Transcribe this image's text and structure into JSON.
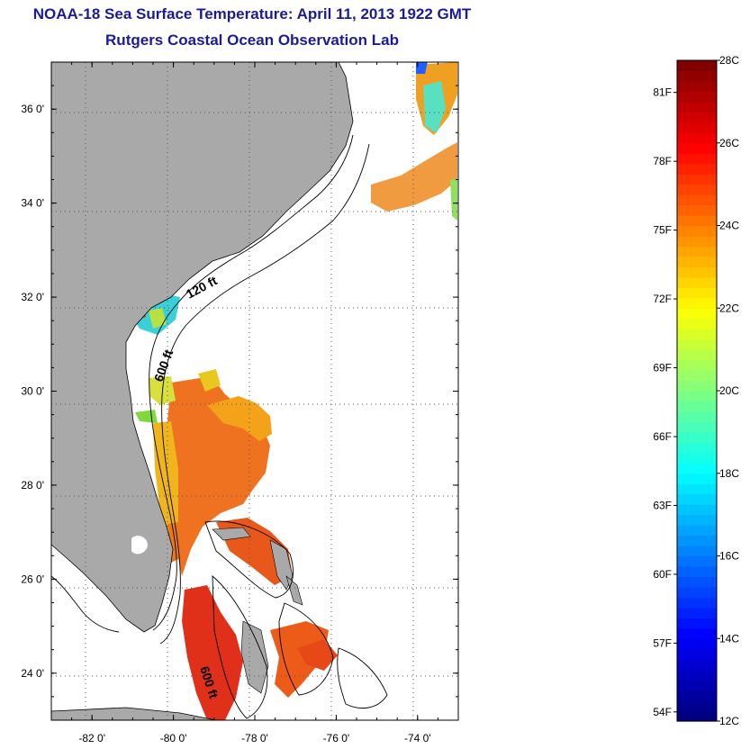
{
  "header": {
    "title": "NOAA-18 Sea Surface Temperature:  April 11, 2013 1922 GMT",
    "subtitle": "Rutgers Coastal Ocean Observation Lab"
  },
  "map": {
    "lon_range": [
      -83,
      -73
    ],
    "lat_range": [
      23,
      37
    ],
    "lon_ticks": [
      {
        "value": -82,
        "label": "-82 0'"
      },
      {
        "value": -80,
        "label": "-80 0'"
      },
      {
        "value": -78,
        "label": "-78 0'"
      },
      {
        "value": -76,
        "label": "-76 0'"
      },
      {
        "value": -74,
        "label": "-74 0'"
      }
    ],
    "lat_ticks": [
      {
        "value": 24,
        "label": "24 0'"
      },
      {
        "value": 26,
        "label": "26 0'"
      },
      {
        "value": 28,
        "label": "28 0'"
      },
      {
        "value": 30,
        "label": "30 0'"
      },
      {
        "value": 32,
        "label": "32 0'"
      },
      {
        "value": 34,
        "label": "34 0'"
      },
      {
        "value": 36,
        "label": "36 0'"
      }
    ],
    "contour_labels": [
      "120 ft",
      "600 ft",
      "600 ft"
    ],
    "grid": true,
    "colors": {
      "land": "#a9a9a9",
      "ocean_missing": "#ffffff",
      "contour": "#000000",
      "title": "#1b1b9a"
    }
  },
  "colorbar": {
    "celsius_labels": [
      "28C",
      "26C",
      "24C",
      "22C",
      "20C",
      "18C",
      "16C",
      "14C",
      "12C"
    ],
    "celsius_values": [
      28,
      26,
      24,
      22,
      20,
      18,
      16,
      14,
      12
    ],
    "fahrenheit_labels": [
      "81F",
      "78F",
      "75F",
      "72F",
      "69F",
      "66F",
      "63F",
      "60F",
      "57F",
      "54F"
    ],
    "fahrenheit_values": [
      81,
      78,
      75,
      72,
      69,
      66,
      63,
      60,
      57,
      54
    ],
    "range_c": [
      12,
      28
    ]
  }
}
